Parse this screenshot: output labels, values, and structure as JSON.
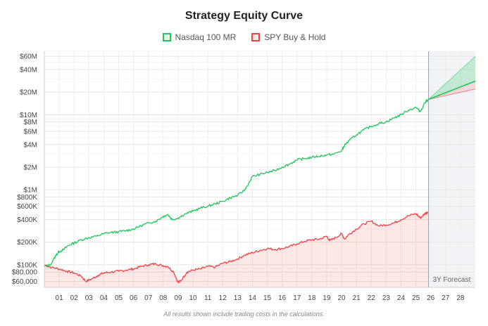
{
  "chart_data": {
    "type": "line",
    "title": "Strategy Equity Curve",
    "xlabel": "",
    "ylabel": "",
    "yscale": "log",
    "ylim": [
      50000,
      70000000
    ],
    "xlim": [
      2000,
      2029
    ],
    "x_ticks": [
      "01",
      "02",
      "03",
      "04",
      "05",
      "06",
      "07",
      "08",
      "09",
      "10",
      "11",
      "12",
      "13",
      "14",
      "15",
      "16",
      "17",
      "18",
      "19",
      "20",
      "21",
      "22",
      "23",
      "24",
      "25",
      "26",
      "27",
      "28"
    ],
    "y_ticks": [
      {
        "value": 60000000,
        "label": "$60M"
      },
      {
        "value": 40000000,
        "label": "$40M"
      },
      {
        "value": 20000000,
        "label": "$20M"
      },
      {
        "value": 10000000,
        "label": "$10M"
      },
      {
        "value": 8000000,
        "label": "$8M"
      },
      {
        "value": 6000000,
        "label": "$6M"
      },
      {
        "value": 4000000,
        "label": "$4M"
      },
      {
        "value": 2000000,
        "label": "$2M"
      },
      {
        "value": 1000000,
        "label": "$1M"
      },
      {
        "value": 800000,
        "label": "$800K"
      },
      {
        "value": 600000,
        "label": "$600K"
      },
      {
        "value": 400000,
        "label": "$400K"
      },
      {
        "value": 200000,
        "label": "$200K"
      },
      {
        "value": 100000,
        "label": "$100K"
      },
      {
        "value": 80000,
        "label": "$80,000"
      },
      {
        "value": 60000,
        "label": "$60,000"
      }
    ],
    "grid": true,
    "legend_position": "top-center",
    "series": [
      {
        "name": "Nasdaq 100 MR",
        "color": "#22c55e",
        "x": [
          2000.0,
          2000.4,
          2000.8,
          2001.0,
          2001.3,
          2001.6,
          2002.0,
          2002.5,
          2003.0,
          2003.5,
          2004.0,
          2004.5,
          2005.0,
          2005.5,
          2006.0,
          2006.5,
          2007.0,
          2007.5,
          2008.0,
          2008.3,
          2008.6,
          2009.0,
          2009.5,
          2010.0,
          2010.5,
          2011.0,
          2011.5,
          2012.0,
          2012.5,
          2013.0,
          2013.5,
          2014.0,
          2014.5,
          2015.0,
          2015.5,
          2016.0,
          2016.5,
          2017.0,
          2017.5,
          2018.0,
          2018.5,
          2019.0,
          2019.5,
          2020.0,
          2020.2,
          2020.5,
          2021.0,
          2021.5,
          2022.0,
          2022.5,
          2023.0,
          2023.5,
          2024.0,
          2024.5,
          2025.0,
          2025.3,
          2025.6,
          2025.85
        ],
        "values": [
          95000,
          100000,
          135000,
          150000,
          160000,
          180000,
          195000,
          215000,
          230000,
          240000,
          260000,
          270000,
          275000,
          285000,
          300000,
          330000,
          360000,
          380000,
          440000,
          470000,
          400000,
          420000,
          480000,
          520000,
          570000,
          600000,
          650000,
          700000,
          780000,
          840000,
          1000000,
          1500000,
          1600000,
          1700000,
          1800000,
          2000000,
          2200000,
          2500000,
          2600000,
          2700000,
          2800000,
          2900000,
          3000000,
          3300000,
          3900000,
          4500000,
          5400000,
          6300000,
          7000000,
          7600000,
          8000000,
          9000000,
          10000000,
          11500000,
          12500000,
          11000000,
          14500000,
          16000000
        ]
      },
      {
        "name": "SPY Buy & Hold",
        "color": "#ef4444",
        "x": [
          2000.0,
          2000.5,
          2001.0,
          2001.5,
          2002.0,
          2002.5,
          2002.8,
          2003.2,
          2003.6,
          2004.0,
          2004.5,
          2005.0,
          2005.5,
          2006.0,
          2006.5,
          2007.0,
          2007.5,
          2007.9,
          2008.3,
          2008.7,
          2009.0,
          2009.2,
          2009.6,
          2010.0,
          2010.5,
          2011.0,
          2011.5,
          2012.0,
          2012.5,
          2013.0,
          2013.5,
          2014.0,
          2014.5,
          2015.0,
          2015.5,
          2016.0,
          2016.5,
          2017.0,
          2017.5,
          2018.0,
          2018.5,
          2019.0,
          2019.2,
          2019.6,
          2020.0,
          2020.2,
          2020.5,
          2021.0,
          2021.5,
          2022.0,
          2022.5,
          2023.0,
          2023.5,
          2024.0,
          2024.5,
          2025.0,
          2025.3,
          2025.6,
          2025.85
        ],
        "values": [
          100000,
          92000,
          88000,
          82000,
          78000,
          70000,
          60000,
          65000,
          72000,
          78000,
          80000,
          82000,
          85000,
          88000,
          95000,
          100000,
          103000,
          98000,
          95000,
          80000,
          58000,
          62000,
          80000,
          85000,
          88000,
          95000,
          93000,
          105000,
          110000,
          120000,
          135000,
          145000,
          155000,
          165000,
          160000,
          165000,
          175000,
          190000,
          205000,
          215000,
          220000,
          240000,
          210000,
          230000,
          260000,
          220000,
          255000,
          300000,
          350000,
          380000,
          330000,
          340000,
          360000,
          400000,
          450000,
          480000,
          420000,
          480000,
          510000
        ]
      }
    ],
    "forecast": {
      "label": "3Y Forecast",
      "start": 2025.85,
      "end": 2029,
      "nasdaq_mid_end": 28000000,
      "nasdaq_high_end": 60000000,
      "nasdaq_low_end": 22000000,
      "spy_end": 22000000
    }
  },
  "footnote": "All results shown include trading costs in the calculations."
}
